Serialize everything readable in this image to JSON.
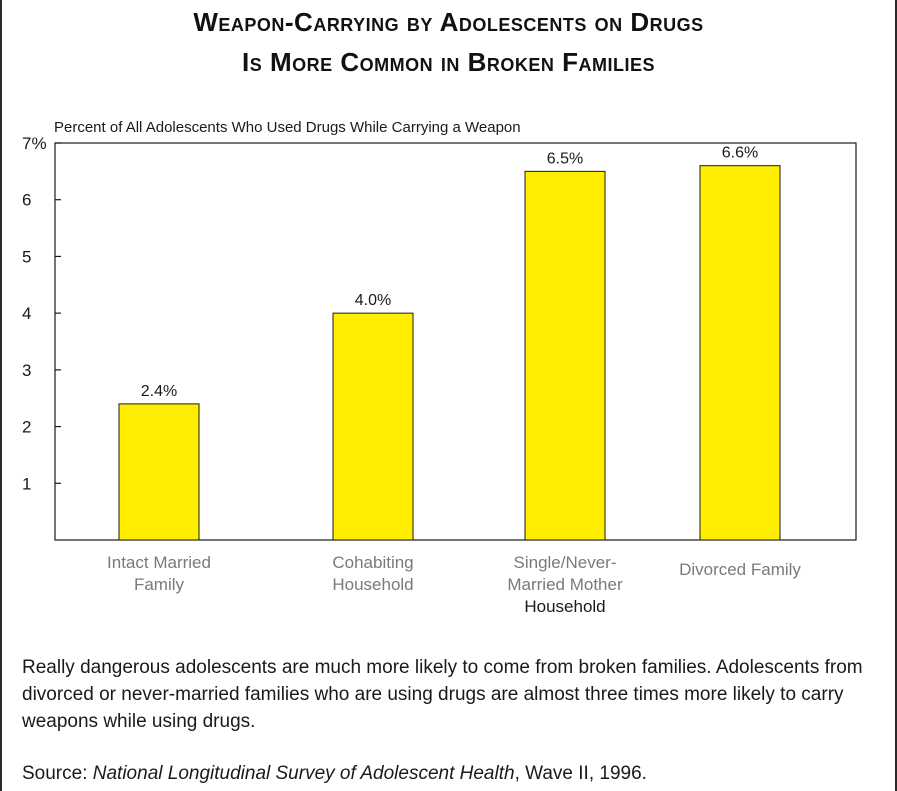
{
  "title": {
    "line1": "Weapon-Carrying by Adolescents on Drugs",
    "line2": "Is More Common in Broken Families"
  },
  "chart_data": {
    "type": "bar",
    "ylabel": "Percent of All Adolescents Who Used Drugs While Carrying a Weapon",
    "categories": [
      [
        "Intact Married",
        "Family"
      ],
      [
        "Cohabiting",
        "Household"
      ],
      [
        "Single/Never-",
        "Married Mother",
        "Household"
      ],
      [
        "Divorced Family"
      ]
    ],
    "values": [
      2.4,
      4.0,
      6.5,
      6.6
    ],
    "value_labels": [
      "2.4%",
      "4.0%",
      "6.5%",
      "6.6%"
    ],
    "ylim": [
      0,
      7
    ],
    "yticks": [
      1,
      2,
      3,
      4,
      5,
      6,
      7
    ],
    "ytick_labels": [
      "1",
      "2",
      "3",
      "4",
      "5",
      "6",
      "7%"
    ],
    "grid": false,
    "colors": {
      "bar": "#ffee00",
      "bar_stroke": "#1a1a1a",
      "axis": "#1a1a1a",
      "category_text": "#7a7a7a"
    }
  },
  "caption": "Really dangerous adolescents are much more likely to come from broken families. Adolescents from divorced or never-married families who are using drugs are almost three times more likely to carry weapons while using drugs.",
  "source": {
    "prefix": "Source: ",
    "title": "National Longitudinal Survey of Adolescent Health",
    "suffix": ", Wave II, 1996."
  }
}
